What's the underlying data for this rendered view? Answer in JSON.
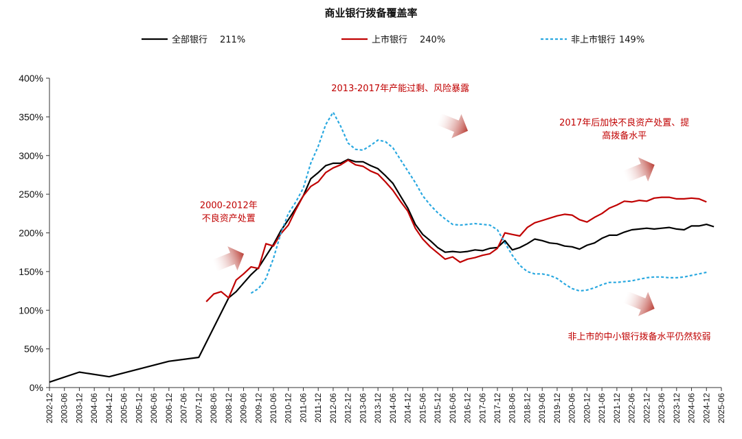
{
  "chart_data": {
    "type": "line",
    "title": "商业银行拨备覆盖率",
    "xlabel": "",
    "ylabel": "",
    "ylim": [
      0,
      400
    ],
    "yticks": [
      "0%",
      "50%",
      "100%",
      "150%",
      "200%",
      "250%",
      "300%",
      "350%",
      "400%"
    ],
    "x_tick_labels": [
      "2002-12",
      "2003-06",
      "2003-12",
      "2004-06",
      "2004-12",
      "2005-06",
      "2005-12",
      "2006-06",
      "2006-12",
      "2007-06",
      "2007-12",
      "2008-06",
      "2008-12",
      "2009-06",
      "2009-12",
      "2010-06",
      "2010-12",
      "2011-06",
      "2011-12",
      "2012-06",
      "2012-12",
      "2013-06",
      "2013-12",
      "2014-06",
      "2014-12",
      "2015-06",
      "2015-12",
      "2016-06",
      "2016-12",
      "2017-06",
      "2017-12",
      "2018-06",
      "2018-12",
      "2019-06",
      "2019-12",
      "2020-06",
      "2020-12",
      "2021-06",
      "2021-12",
      "2022-06",
      "2022-12",
      "2023-06",
      "2023-12",
      "2024-06",
      "2024-12",
      "2025-06"
    ],
    "legend_position": "top",
    "grid": false,
    "series": [
      {
        "name": "全部银行",
        "legend_value": "211%",
        "color": "#000000",
        "dash": "solid",
        "points": [
          [
            "2002-12",
            7
          ],
          [
            "2003-12",
            20
          ],
          [
            "2004-12",
            14
          ],
          [
            "2005-12",
            24
          ],
          [
            "2006-12",
            34
          ],
          [
            "2007-12",
            39
          ],
          [
            "2008-12",
            116
          ],
          [
            "2009-03",
            124
          ],
          [
            "2009-06",
            135
          ],
          [
            "2009-09",
            146
          ],
          [
            "2009-12",
            155
          ],
          [
            "2010-03",
            170
          ],
          [
            "2010-06",
            185
          ],
          [
            "2010-09",
            203
          ],
          [
            "2010-12",
            217
          ],
          [
            "2011-03",
            232
          ],
          [
            "2011-06",
            248
          ],
          [
            "2011-09",
            270
          ],
          [
            "2011-12",
            278
          ],
          [
            "2012-03",
            287
          ],
          [
            "2012-06",
            290
          ],
          [
            "2012-09",
            290
          ],
          [
            "2012-12",
            295
          ],
          [
            "2013-03",
            292
          ],
          [
            "2013-06",
            292
          ],
          [
            "2013-09",
            287
          ],
          [
            "2013-12",
            283
          ],
          [
            "2014-03",
            274
          ],
          [
            "2014-06",
            264
          ],
          [
            "2014-09",
            248
          ],
          [
            "2014-12",
            232
          ],
          [
            "2015-03",
            211
          ],
          [
            "2015-06",
            198
          ],
          [
            "2015-09",
            190
          ],
          [
            "2015-12",
            181
          ],
          [
            "2016-03",
            175
          ],
          [
            "2016-06",
            176
          ],
          [
            "2016-09",
            175
          ],
          [
            "2016-12",
            176
          ],
          [
            "2017-03",
            178
          ],
          [
            "2017-06",
            177
          ],
          [
            "2017-09",
            180
          ],
          [
            "2017-12",
            181
          ],
          [
            "2018-03",
            190
          ],
          [
            "2018-06",
            178
          ],
          [
            "2018-09",
            181
          ],
          [
            "2018-12",
            186
          ],
          [
            "2019-03",
            192
          ],
          [
            "2019-06",
            190
          ],
          [
            "2019-09",
            187
          ],
          [
            "2019-12",
            186
          ],
          [
            "2020-03",
            183
          ],
          [
            "2020-06",
            182
          ],
          [
            "2020-09",
            179
          ],
          [
            "2020-12",
            184
          ],
          [
            "2021-03",
            187
          ],
          [
            "2021-06",
            193
          ],
          [
            "2021-09",
            197
          ],
          [
            "2021-12",
            197
          ],
          [
            "2022-03",
            201
          ],
          [
            "2022-06",
            204
          ],
          [
            "2022-09",
            205
          ],
          [
            "2022-12",
            206
          ],
          [
            "2023-03",
            205
          ],
          [
            "2023-06",
            206
          ],
          [
            "2023-09",
            207
          ],
          [
            "2023-12",
            205
          ],
          [
            "2024-03",
            204
          ],
          [
            "2024-06",
            209
          ],
          [
            "2024-09",
            209
          ],
          [
            "2024-12",
            211
          ],
          [
            "2025-03",
            208
          ]
        ]
      },
      {
        "name": "上市银行",
        "legend_value": "240%",
        "color": "#c00000",
        "dash": "solid",
        "points": [
          [
            "2008-03",
            111
          ],
          [
            "2008-06",
            121
          ],
          [
            "2008-09",
            124
          ],
          [
            "2008-12",
            116
          ],
          [
            "2009-03",
            139
          ],
          [
            "2009-06",
            147
          ],
          [
            "2009-09",
            156
          ],
          [
            "2009-12",
            154
          ],
          [
            "2010-03",
            186
          ],
          [
            "2010-06",
            183
          ],
          [
            "2010-09",
            199
          ],
          [
            "2010-12",
            210
          ],
          [
            "2011-03",
            230
          ],
          [
            "2011-06",
            248
          ],
          [
            "2011-09",
            260
          ],
          [
            "2011-12",
            266
          ],
          [
            "2012-03",
            278
          ],
          [
            "2012-06",
            284
          ],
          [
            "2012-09",
            288
          ],
          [
            "2012-12",
            294
          ],
          [
            "2013-03",
            288
          ],
          [
            "2013-06",
            286
          ],
          [
            "2013-09",
            280
          ],
          [
            "2013-12",
            276
          ],
          [
            "2014-03",
            266
          ],
          [
            "2014-06",
            255
          ],
          [
            "2014-09",
            241
          ],
          [
            "2014-12",
            228
          ],
          [
            "2015-03",
            206
          ],
          [
            "2015-06",
            192
          ],
          [
            "2015-09",
            182
          ],
          [
            "2015-12",
            174
          ],
          [
            "2016-03",
            166
          ],
          [
            "2016-06",
            169
          ],
          [
            "2016-09",
            162
          ],
          [
            "2016-12",
            166
          ],
          [
            "2017-03",
            168
          ],
          [
            "2017-06",
            171
          ],
          [
            "2017-09",
            173
          ],
          [
            "2017-12",
            180
          ],
          [
            "2018-03",
            200
          ],
          [
            "2018-06",
            198
          ],
          [
            "2018-09",
            196
          ],
          [
            "2018-12",
            207
          ],
          [
            "2019-03",
            213
          ],
          [
            "2019-06",
            216
          ],
          [
            "2019-09",
            219
          ],
          [
            "2019-12",
            222
          ],
          [
            "2020-03",
            224
          ],
          [
            "2020-06",
            223
          ],
          [
            "2020-09",
            217
          ],
          [
            "2020-12",
            214
          ],
          [
            "2021-03",
            220
          ],
          [
            "2021-06",
            225
          ],
          [
            "2021-09",
            232
          ],
          [
            "2021-12",
            236
          ],
          [
            "2022-03",
            241
          ],
          [
            "2022-06",
            240
          ],
          [
            "2022-09",
            242
          ],
          [
            "2022-12",
            241
          ],
          [
            "2023-03",
            245
          ],
          [
            "2023-06",
            246
          ],
          [
            "2023-09",
            246
          ],
          [
            "2023-12",
            244
          ],
          [
            "2024-03",
            244
          ],
          [
            "2024-06",
            245
          ],
          [
            "2024-09",
            244
          ],
          [
            "2024-12",
            240
          ]
        ]
      },
      {
        "name": "非上市银行",
        "legend_value": "149%",
        "color": "#29a8e0",
        "dash": "dashed",
        "points": [
          [
            "2009-09",
            122
          ],
          [
            "2009-12",
            128
          ],
          [
            "2010-03",
            141
          ],
          [
            "2010-06",
            167
          ],
          [
            "2010-09",
            200
          ],
          [
            "2010-12",
            225
          ],
          [
            "2011-03",
            240
          ],
          [
            "2011-06",
            258
          ],
          [
            "2011-09",
            290
          ],
          [
            "2011-12",
            312
          ],
          [
            "2012-03",
            340
          ],
          [
            "2012-06",
            356
          ],
          [
            "2012-09",
            338
          ],
          [
            "2012-12",
            316
          ],
          [
            "2013-03",
            308
          ],
          [
            "2013-06",
            307
          ],
          [
            "2013-09",
            313
          ],
          [
            "2013-12",
            320
          ],
          [
            "2014-03",
            318
          ],
          [
            "2014-06",
            310
          ],
          [
            "2014-09",
            295
          ],
          [
            "2014-12",
            280
          ],
          [
            "2015-03",
            265
          ],
          [
            "2015-06",
            248
          ],
          [
            "2015-09",
            236
          ],
          [
            "2015-12",
            226
          ],
          [
            "2016-03",
            218
          ],
          [
            "2016-06",
            211
          ],
          [
            "2016-09",
            210
          ],
          [
            "2016-12",
            211
          ],
          [
            "2017-03",
            212
          ],
          [
            "2017-06",
            211
          ],
          [
            "2017-09",
            210
          ],
          [
            "2017-12",
            204
          ],
          [
            "2018-03",
            187
          ],
          [
            "2018-06",
            171
          ],
          [
            "2018-09",
            158
          ],
          [
            "2018-12",
            150
          ],
          [
            "2019-03",
            147
          ],
          [
            "2019-06",
            147
          ],
          [
            "2019-09",
            145
          ],
          [
            "2019-12",
            141
          ],
          [
            "2020-03",
            134
          ],
          [
            "2020-06",
            128
          ],
          [
            "2020-09",
            125
          ],
          [
            "2020-12",
            126
          ],
          [
            "2021-03",
            129
          ],
          [
            "2021-06",
            133
          ],
          [
            "2021-09",
            136
          ],
          [
            "2021-12",
            136
          ],
          [
            "2022-03",
            137
          ],
          [
            "2022-06",
            138
          ],
          [
            "2022-09",
            140
          ],
          [
            "2022-12",
            142
          ],
          [
            "2023-03",
            143
          ],
          [
            "2023-06",
            143
          ],
          [
            "2023-09",
            142
          ],
          [
            "2023-12",
            142
          ],
          [
            "2024-03",
            143
          ],
          [
            "2024-06",
            145
          ],
          [
            "2024-09",
            147
          ],
          [
            "2024-12",
            149
          ]
        ]
      }
    ],
    "annotations": [
      {
        "lines": [
          "2000-2012年",
          "不良资产处置"
        ],
        "x": "2008-12",
        "y": 232
      },
      {
        "lines": [
          "2013-2017年产能过剩、风险暴露"
        ],
        "x": "2014-09",
        "y": 383
      },
      {
        "lines": [
          "2017年后加快不良资产处置、提",
          "高拨备水平"
        ],
        "x": "2022-03",
        "y": 339
      },
      {
        "lines": [
          "非上市的中小银行拨备水平仍然较弱"
        ],
        "x": "2022-09",
        "y": 62
      }
    ],
    "arrows": [
      {
        "x": "2008-12",
        "y": 165,
        "direction": "up-right"
      },
      {
        "x": "2016-06",
        "y": 340,
        "direction": "down-right"
      },
      {
        "x": "2022-09",
        "y": 280,
        "direction": "up-right"
      },
      {
        "x": "2022-09",
        "y": 110,
        "direction": "down-right"
      }
    ]
  }
}
